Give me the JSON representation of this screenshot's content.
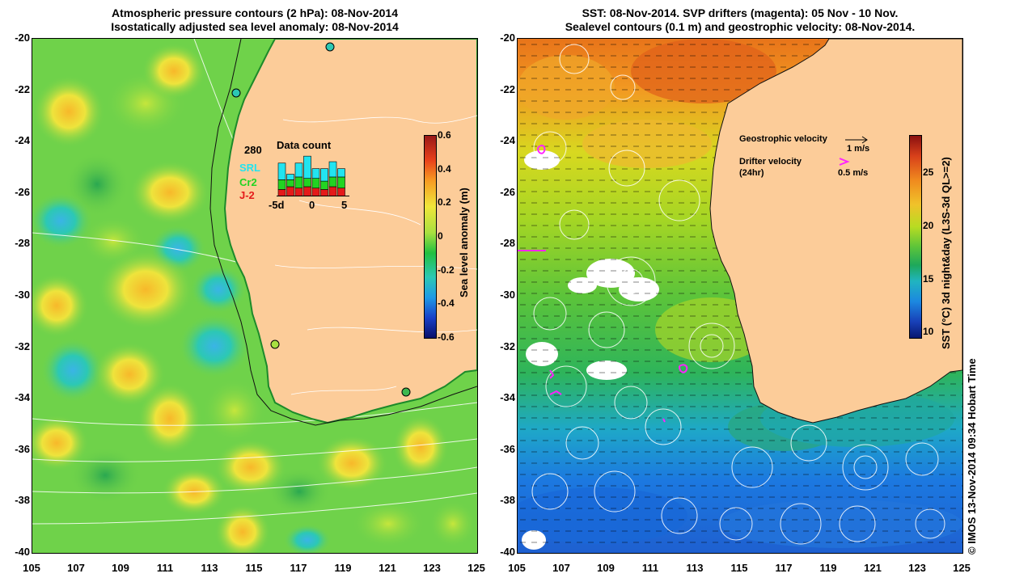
{
  "left_panel": {
    "title_line1": "Atmospheric pressure contours (2 hPa): 08-Nov-2014",
    "title_line2": "Isostatically adjusted sea level anomaly: 08-Nov-2014",
    "colorbar": {
      "label": "Sea level anomaly (m)",
      "ticks": [
        "0.6",
        "0.4",
        "0.2",
        "0",
        "-0.2",
        "-0.4",
        "-0.6"
      ],
      "range": [
        -0.6,
        0.6
      ]
    },
    "data_count": {
      "title": "Data count",
      "max_label": "280",
      "legend": [
        {
          "name": "SRL",
          "color": "#22e4f0"
        },
        {
          "name": "Cr2",
          "color": "#22d422"
        },
        {
          "name": "J-2",
          "color": "#e41a1a"
        }
      ],
      "x_ticks": [
        "-5d",
        "0",
        "5"
      ],
      "bars": [
        {
          "j2": 0.25,
          "cr2": 0.35,
          "srl": 0.6
        },
        {
          "j2": 0.35,
          "cr2": 0.25,
          "srl": 0.2
        },
        {
          "j2": 0.3,
          "cr2": 0.4,
          "srl": 0.5
        },
        {
          "j2": 0.35,
          "cr2": 0.3,
          "srl": 0.8
        },
        {
          "j2": 0.3,
          "cr2": 0.35,
          "srl": 0.35
        },
        {
          "j2": 0.25,
          "cr2": 0.3,
          "srl": 0.45
        },
        {
          "j2": 0.35,
          "cr2": 0.35,
          "srl": 0.55
        },
        {
          "j2": 0.3,
          "cr2": 0.4,
          "srl": 0.3
        }
      ]
    }
  },
  "right_panel": {
    "title_line1": "SST: 08-Nov-2014. SVP drifters (magenta): 05 Nov - 10 Nov.",
    "title_line2": "Sealevel contours (0.1 m) and geostrophic velocity: 08-Nov-2014.",
    "colorbar": {
      "label": "SST (°C) 3d night&day (L3S-3d QL>=2)",
      "ticks": [
        "25",
        "20",
        "15",
        "10"
      ],
      "range": [
        9.5,
        28.5
      ]
    },
    "legend": {
      "geo_label": "Geostrophic velocity",
      "geo_scale": "1 m/s",
      "drifter_label": "Drifter velocity",
      "drifter_sub": "(24hr)",
      "drifter_scale": "0.5 m/s",
      "drifter_color": "#ff22ff"
    }
  },
  "axes": {
    "y_ticks": [
      "-20",
      "-22",
      "-24",
      "-26",
      "-28",
      "-30",
      "-32",
      "-34",
      "-36",
      "-38",
      "-40"
    ],
    "x_ticks": [
      "105",
      "107",
      "109",
      "111",
      "113",
      "115",
      "117",
      "119",
      "121",
      "123",
      "125"
    ],
    "lon_range": [
      105,
      125
    ],
    "lat_range": [
      -40,
      -20
    ]
  },
  "credit": "© IMOS 13-Nov-2014 09:34 Hobart Time",
  "colors": {
    "land": "#fccc99",
    "sla_base": "#6fd24a",
    "sla_high": "#f0e63a",
    "sla_low": "#2cc8b4",
    "sst_warm": "#f08a1e",
    "sst_cool": "#1e8ce6"
  }
}
